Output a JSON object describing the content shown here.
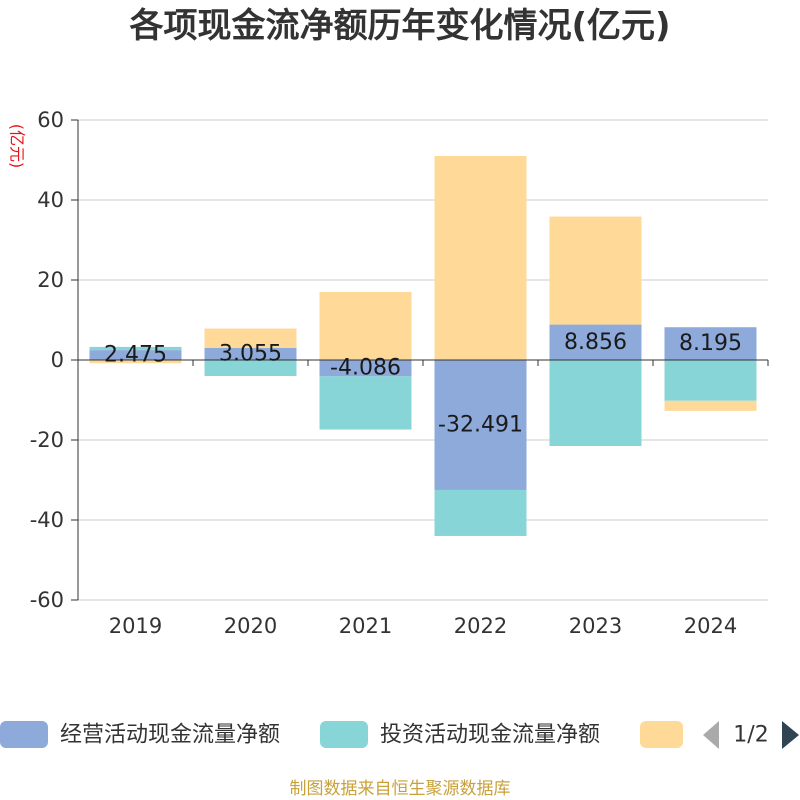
{
  "chart_data": {
    "type": "bar",
    "stacked": true,
    "title": "各项现金流净额历年变化情况(亿元)",
    "xlabel": "",
    "ylabel": "(亿元)",
    "categories": [
      "2019",
      "2020",
      "2021",
      "2022",
      "2023",
      "2024"
    ],
    "ylim": [
      -60,
      60
    ],
    "yticks": [
      60,
      40,
      20,
      0,
      -20,
      -40,
      -60
    ],
    "grid": true,
    "legend_position": "bottom",
    "series": [
      {
        "name": "经营活动现金流量净额",
        "color": "#8eaadb",
        "show_labels": true,
        "values": [
          2.475,
          3.055,
          -4.086,
          -32.491,
          8.856,
          8.195
        ]
      },
      {
        "name": "投资活动现金流量净额",
        "color": "#88d5d8",
        "values": [
          0.8,
          -4.0,
          -13.3,
          -11.5,
          -21.5,
          -10.2
        ]
      },
      {
        "name": "",
        "color": "#fed998",
        "values": [
          -0.8,
          4.8,
          17.0,
          51.0,
          27.0,
          -2.5
        ]
      }
    ]
  },
  "legend": {
    "page_indicator": "1/2",
    "prev_arrow_color": "#aaaaaa",
    "next_arrow_color": "#2f4554"
  },
  "footer": "制图数据来自恒生聚源数据库"
}
